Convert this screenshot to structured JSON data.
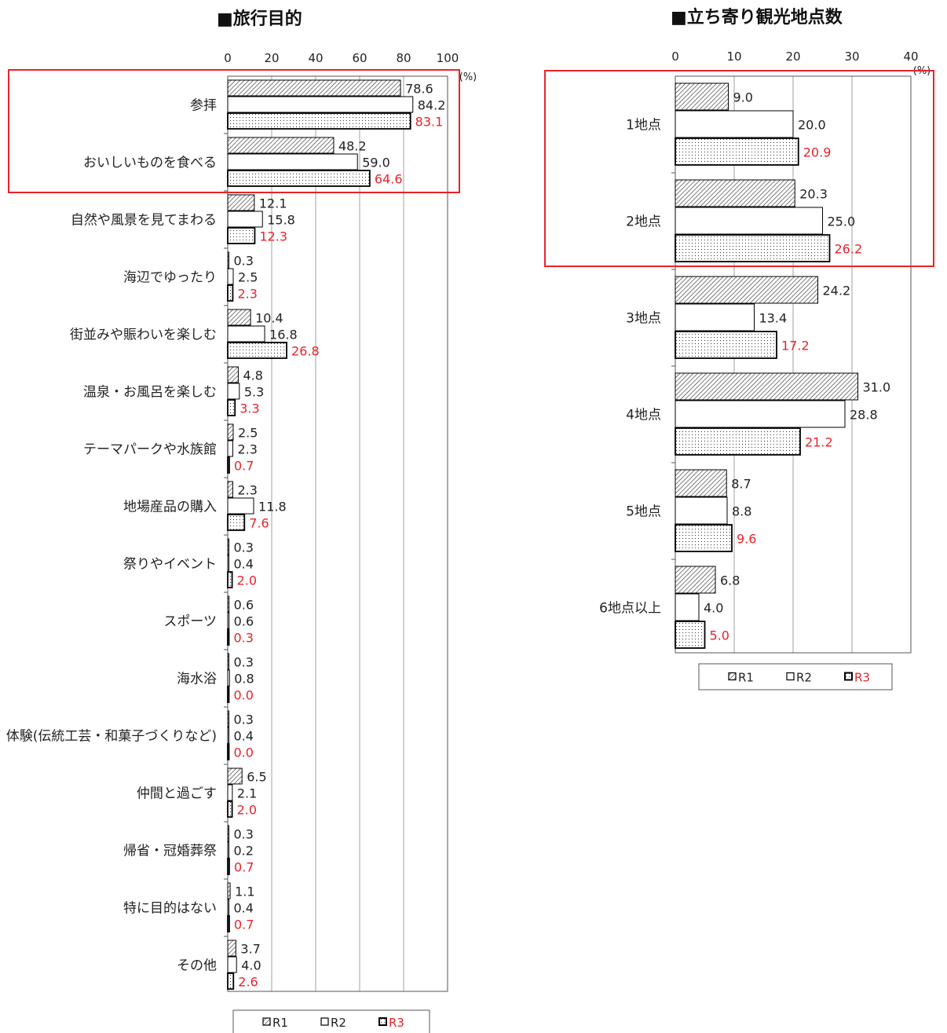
{
  "chart_data": [
    {
      "type": "bar",
      "orientation": "horizontal",
      "title": "■旅行目的",
      "unit_label": "(%)",
      "xlim": [
        0,
        100
      ],
      "ticks": [
        "0",
        "20",
        "40",
        "60",
        "80",
        "100"
      ],
      "categories": [
        "参拝",
        "おいしいものを食べる",
        "自然や風景を見てまわる",
        "海辺でゆったり",
        "街並みや賑わいを楽しむ",
        "温泉・お風呂を楽しむ",
        "テーマパークや水族館",
        "地場産品の購入",
        "祭りやイベント",
        "スポーツ",
        "海水浴",
        "体験(伝統工芸・和菓子づくりなど)",
        "仲間と過ごす",
        "帰省・冠婚葬祭",
        "特に目的はない",
        "その他"
      ],
      "series": [
        {
          "name": "R1",
          "values": [
            78.6,
            48.2,
            12.1,
            0.3,
            10.4,
            4.8,
            2.5,
            2.3,
            0.3,
            0.6,
            0.3,
            0.3,
            6.5,
            0.3,
            1.1,
            3.7
          ],
          "labels": [
            "78.6",
            "48.2",
            "12.1",
            "0.3",
            "10.4",
            "4.8",
            "2.5",
            "2.3",
            "0.3",
            "0.6",
            "0.3",
            "0.3",
            "6.5",
            "0.3",
            "1.1",
            "3.7"
          ]
        },
        {
          "name": "R2",
          "values": [
            84.2,
            59.0,
            15.8,
            2.5,
            16.8,
            5.3,
            2.3,
            11.8,
            0.4,
            0.6,
            0.8,
            0.4,
            2.1,
            0.2,
            0.4,
            4.0
          ],
          "labels": [
            "84.2",
            "59.0",
            "15.8",
            "2.5",
            "16.8",
            "5.3",
            "2.3",
            "11.8",
            "0.4",
            "0.6",
            "0.8",
            "0.4",
            "2.1",
            "0.2",
            "0.4",
            "4.0"
          ]
        },
        {
          "name": "R3",
          "values": [
            83.1,
            64.6,
            12.3,
            2.3,
            26.8,
            3.3,
            0.7,
            7.6,
            2.0,
            0.3,
            0.0,
            0.0,
            2.0,
            0.7,
            0.7,
            2.6
          ],
          "labels": [
            "83.1",
            "64.6",
            "12.3",
            "2.3",
            "26.8",
            "3.3",
            "0.7",
            "7.6",
            "2.0",
            "0.3",
            "0.0",
            "0.0",
            "2.0",
            "0.7",
            "0.7",
            "2.6"
          ]
        }
      ],
      "highlight_categories": [
        "参拝",
        "おいしいものを食べる"
      ],
      "legend": [
        "R1",
        "R2",
        "R3"
      ],
      "legend_position": "bottom",
      "grid": true
    },
    {
      "type": "bar",
      "orientation": "horizontal",
      "title": "■立ち寄り観光地点数",
      "unit_label": "(%)",
      "xlim": [
        0,
        40
      ],
      "ticks": [
        "0",
        "10",
        "20",
        "30",
        "40"
      ],
      "categories": [
        "1地点",
        "2地点",
        "3地点",
        "4地点",
        "5地点",
        "6地点以上"
      ],
      "series": [
        {
          "name": "R1",
          "values": [
            9.0,
            20.3,
            24.2,
            31.0,
            8.7,
            6.8
          ],
          "labels": [
            "9.0",
            "20.3",
            "24.2",
            "31.0",
            "8.7",
            "6.8"
          ]
        },
        {
          "name": "R2",
          "values": [
            20.0,
            25.0,
            13.4,
            28.8,
            8.8,
            4.0
          ],
          "labels": [
            "20.0",
            "25.0",
            "13.4",
            "28.8",
            "8.8",
            "4.0"
          ]
        },
        {
          "name": "R3",
          "values": [
            20.9,
            26.2,
            17.2,
            21.2,
            9.6,
            5.0
          ],
          "labels": [
            "20.9",
            "26.2",
            "17.2",
            "21.2",
            "9.6",
            "5.0"
          ]
        }
      ],
      "highlight_categories": [
        "1地点",
        "2地点"
      ],
      "legend": [
        "R1",
        "R2",
        "R3"
      ],
      "legend_position": "bottom",
      "grid": true
    }
  ],
  "colors": {
    "highlight_box": "#e8232a",
    "r3_label": "#e8232a",
    "label": "#222222",
    "grid": "#a0a0a0",
    "bar_stroke": "#000000",
    "r2_fill": "#ffffff"
  }
}
